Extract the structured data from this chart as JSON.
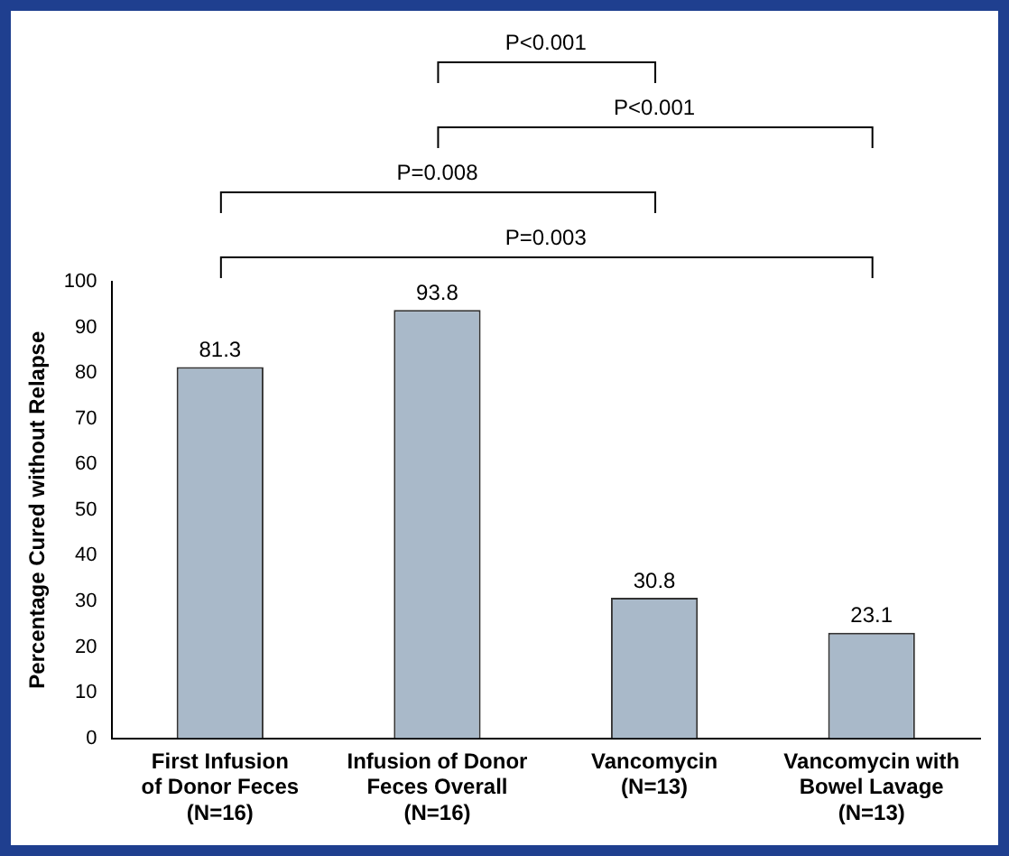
{
  "chart_data": {
    "type": "bar",
    "ylabel": "Percentage Cured without Relapse",
    "categories": [
      "First Infusion\nof Donor Feces\n(N=16)",
      "Infusion of Donor\nFeces Overall\n(N=16)",
      "Vancomycin\n(N=13)",
      "Vancomycin with\nBowel Lavage\n(N=13)"
    ],
    "values": [
      81.3,
      93.8,
      30.8,
      23.1
    ],
    "color": "#a9b9c9",
    "data_labels": true,
    "ylim": [
      0,
      100
    ],
    "yticks": [
      0,
      10,
      20,
      30,
      40,
      50,
      60,
      70,
      80,
      90,
      100
    ],
    "grid": false,
    "annotations": [
      "P<0.001",
      "P<0.001",
      "P=0.008",
      "P=0.003"
    ]
  }
}
